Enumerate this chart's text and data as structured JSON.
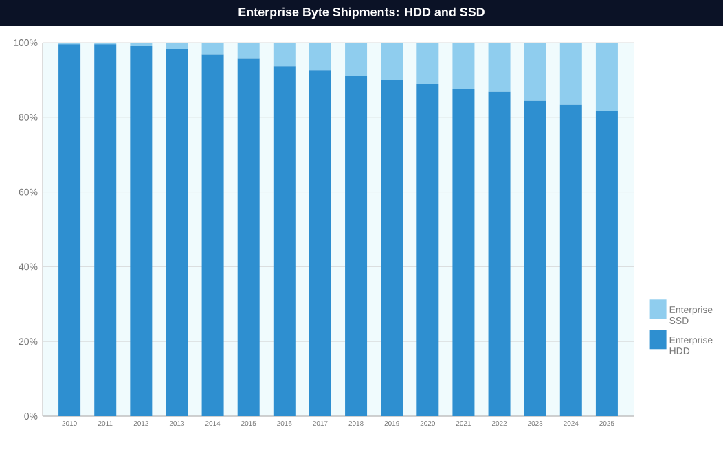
{
  "chart_data": {
    "type": "bar",
    "title": "Enterprise Byte Shipments: HDD and SSD",
    "stacked": true,
    "categories": [
      "2010",
      "2011",
      "2012",
      "2013",
      "2014",
      "2015",
      "2016",
      "2017",
      "2018",
      "2019",
      "2020",
      "2021",
      "2022",
      "2023",
      "2024",
      "2025"
    ],
    "series": [
      {
        "name": "Enterprise HDD",
        "color": "#2e8fd0",
        "values": [
          99.6,
          99.6,
          99.1,
          98.3,
          96.8,
          95.7,
          93.7,
          92.6,
          91.1,
          90.0,
          88.9,
          87.5,
          86.8,
          84.4,
          83.3,
          81.6
        ]
      },
      {
        "name": "Enterprise SSD",
        "color": "#8fcdee",
        "values": [
          0.4,
          0.4,
          0.9,
          1.7,
          3.2,
          4.3,
          6.3,
          7.4,
          8.9,
          10.0,
          11.1,
          12.5,
          13.2,
          15.6,
          16.7,
          18.4
        ]
      }
    ],
    "ylim": [
      0,
      100
    ],
    "yticks": [
      {
        "value": 0,
        "label": "0%"
      },
      {
        "value": 20,
        "label": "20%"
      },
      {
        "value": 40,
        "label": "40%"
      },
      {
        "value": 60,
        "label": "60%"
      },
      {
        "value": 80,
        "label": "80%"
      },
      {
        "value": 100,
        "label": "100%"
      }
    ],
    "grid": "y",
    "legend": "right"
  }
}
